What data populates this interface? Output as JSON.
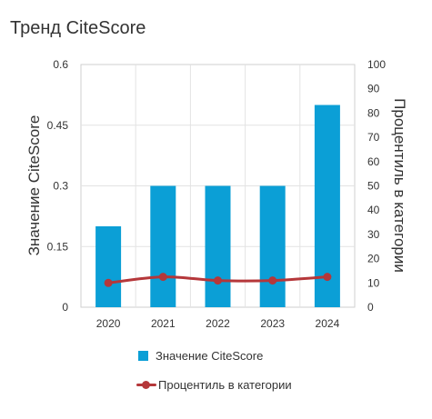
{
  "title": "Тренд CiteScore",
  "colors": {
    "bar": "#0b9fd6",
    "line": "#b5373a",
    "grid": "#e3e3e3",
    "axis": "#cfcfcf"
  },
  "chart_data": {
    "type": "bar",
    "categories": [
      "2020",
      "2021",
      "2022",
      "2023",
      "2024"
    ],
    "series": [
      {
        "name": "Значение CiteScore",
        "type": "bar",
        "axis": "left",
        "values": [
          0.2,
          0.3,
          0.3,
          0.3,
          0.5
        ]
      },
      {
        "name": "Процентиль в категории",
        "type": "line",
        "axis": "right",
        "values": [
          10,
          12.5,
          11,
          11,
          12.5
        ]
      }
    ],
    "ylabel": "Значение CiteScore",
    "ylabel_right": "Процентиль в категории",
    "ylim": [
      0,
      0.6
    ],
    "ylim_right": [
      0,
      100
    ],
    "yticks": [
      "0",
      "0.15",
      "0.3",
      "0.45",
      "0.6"
    ],
    "yticks_right": [
      "0",
      "10",
      "20",
      "30",
      "40",
      "50",
      "60",
      "70",
      "80",
      "90",
      "100"
    ],
    "grid": true,
    "legend": "bottom"
  }
}
